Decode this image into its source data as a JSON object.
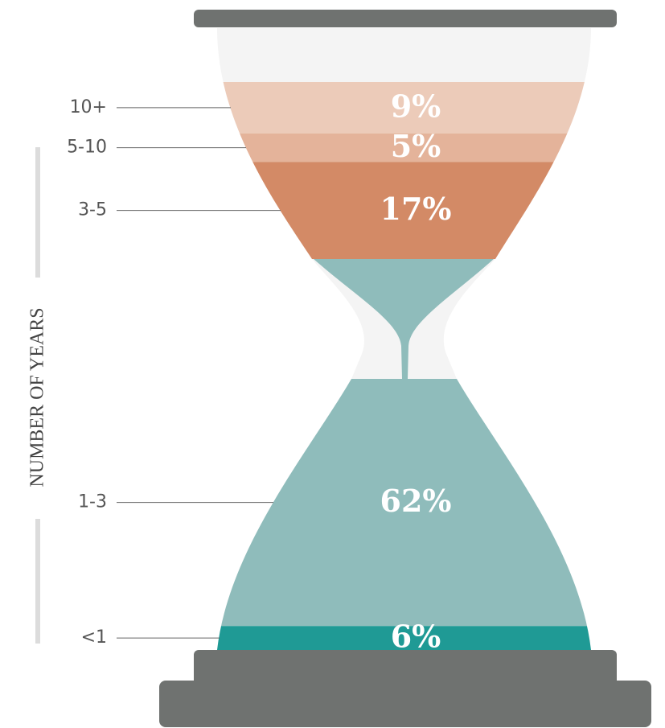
{
  "chart_data": {
    "type": "hourglass",
    "y_axis_label": "NUMBER OF YEARS",
    "categories": [
      "10+",
      "5-10",
      "3-5",
      "1-3",
      "<1"
    ],
    "values": [
      9,
      5,
      17,
      62,
      6
    ],
    "value_labels": [
      "9%",
      "5%",
      "17%",
      "62%",
      "6%"
    ],
    "colors": [
      "#eccbb9",
      "#e4b39a",
      "#d38a66",
      "#8fbcbb",
      "#1f9a95"
    ]
  }
}
